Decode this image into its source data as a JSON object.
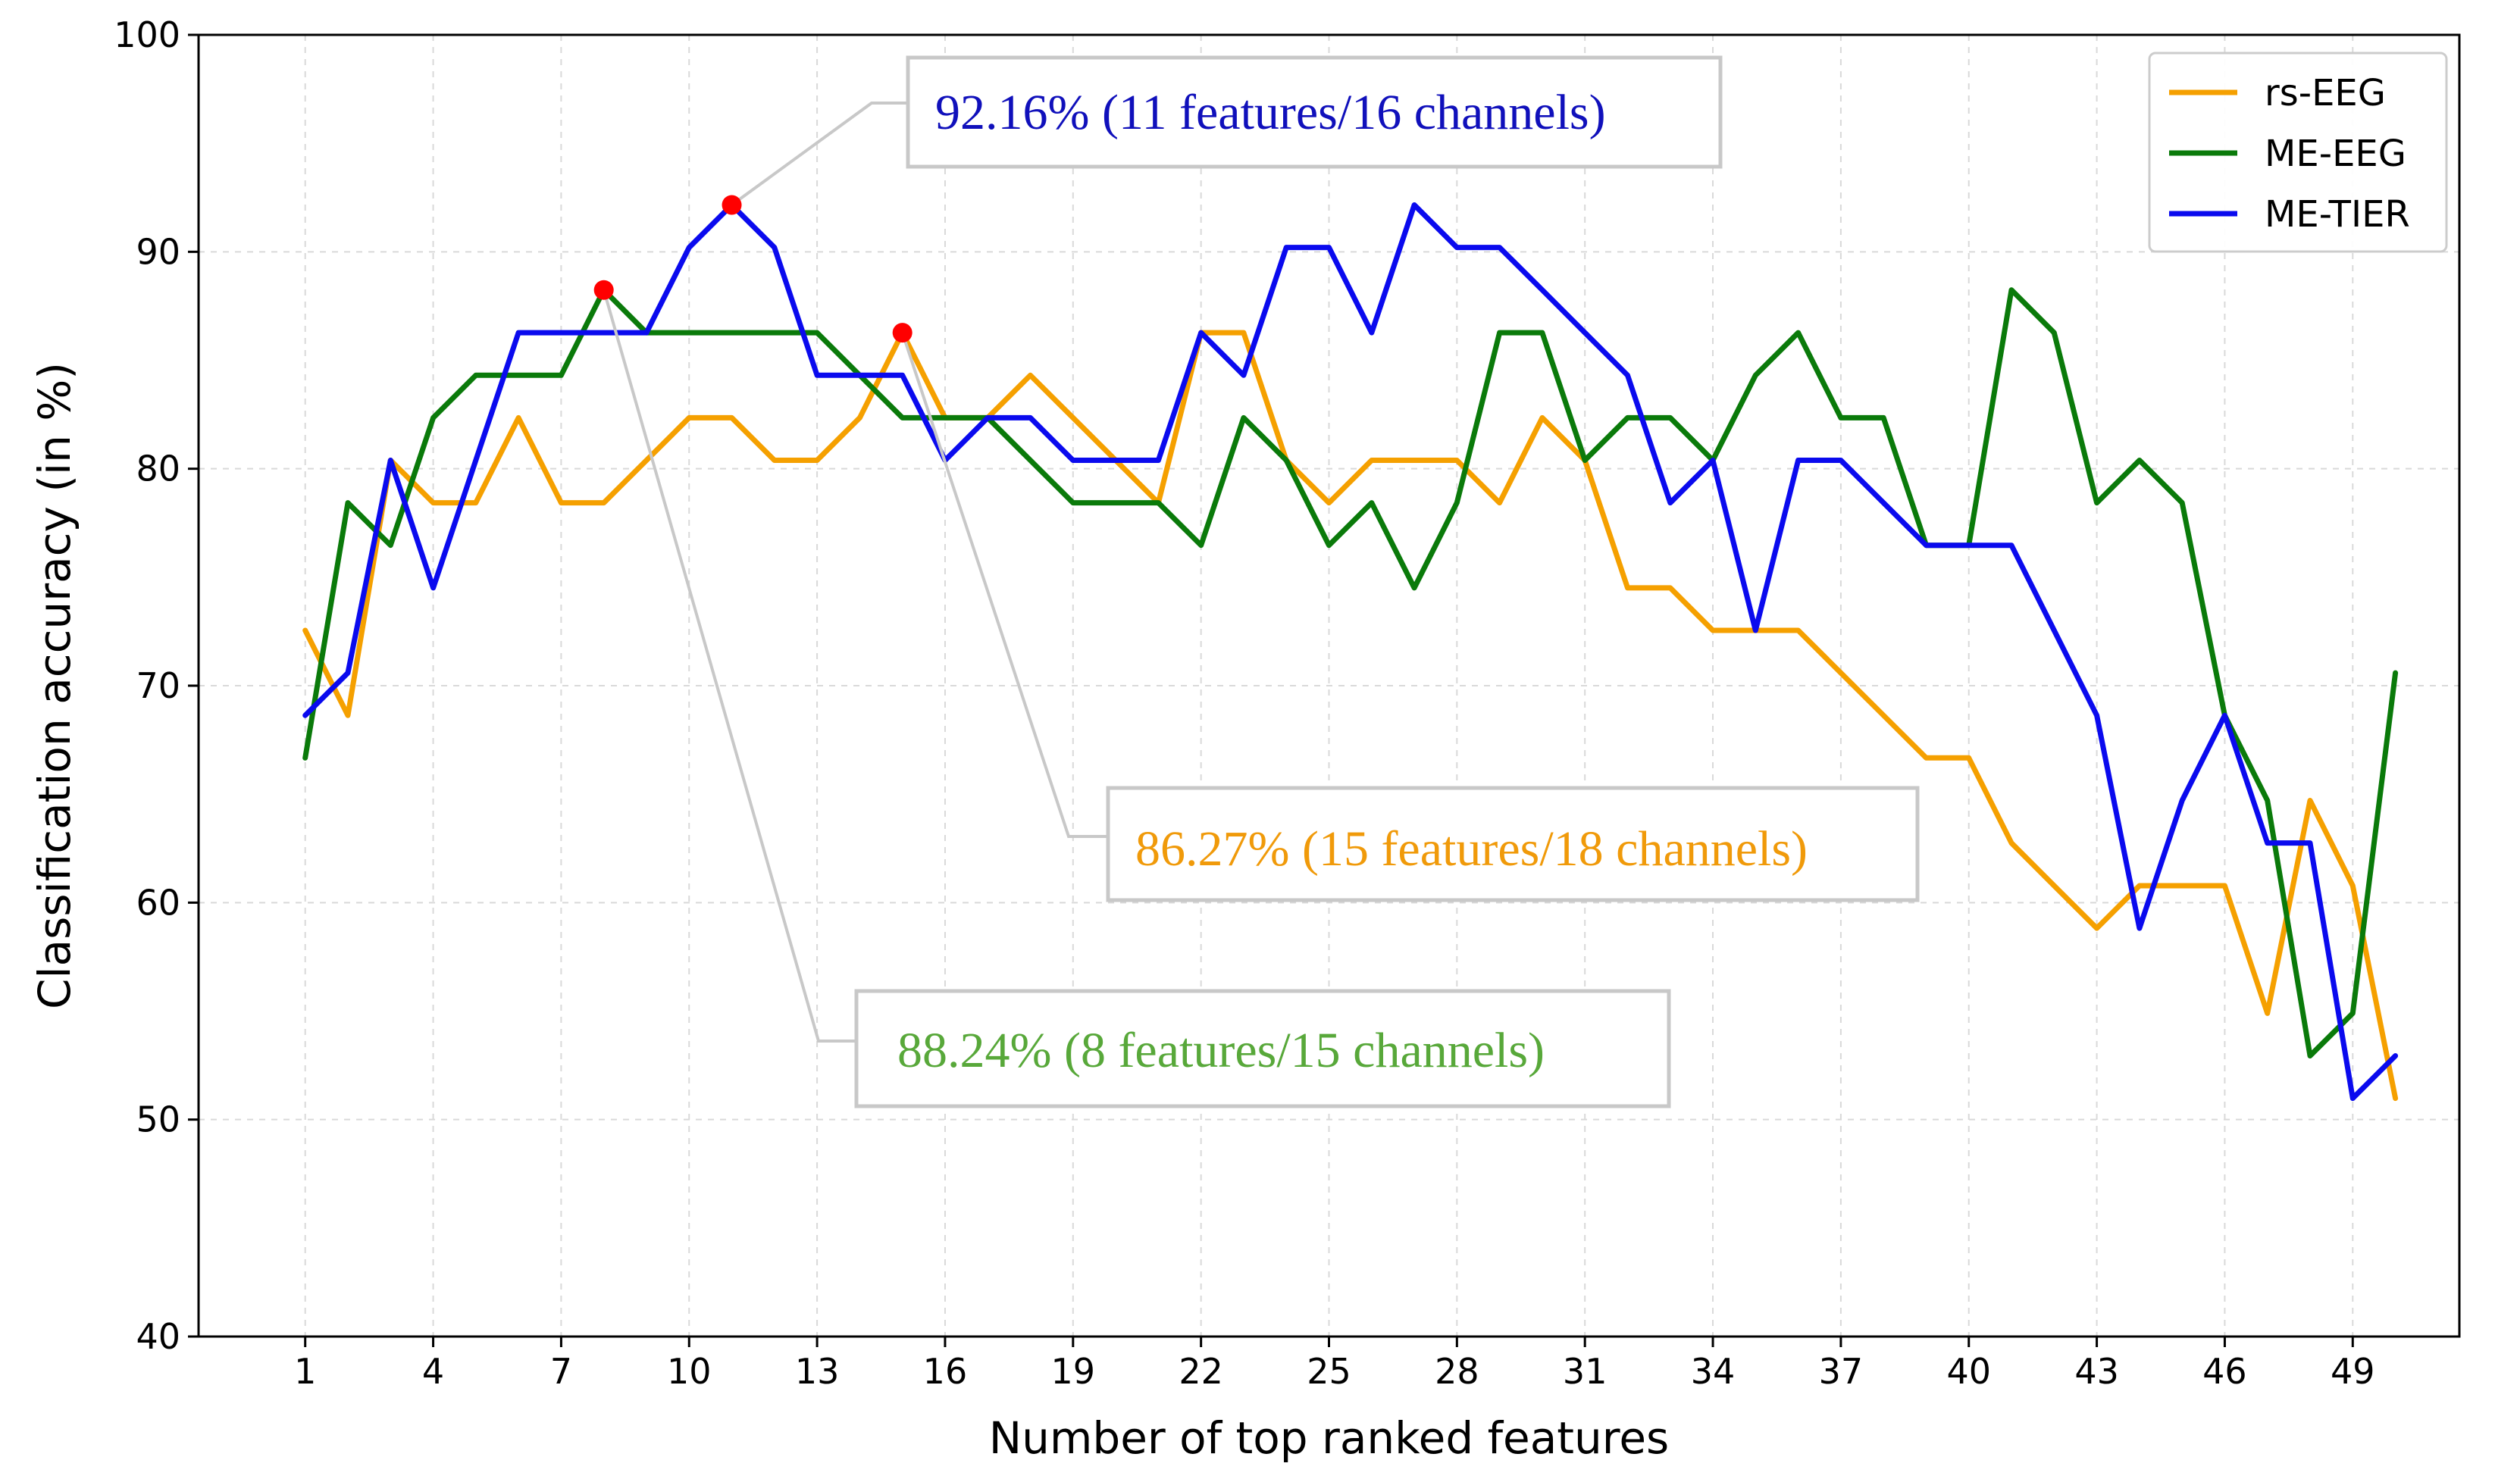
{
  "chart_data": {
    "type": "line",
    "title": "",
    "xlabel": "Number of top ranked features",
    "ylabel": "Classification accuracy (in %)",
    "xlim": [
      -1.5,
      51.5
    ],
    "ylim": [
      40,
      100
    ],
    "xticks": [
      1,
      4,
      7,
      10,
      13,
      16,
      19,
      22,
      25,
      28,
      31,
      34,
      37,
      40,
      43,
      46,
      49
    ],
    "yticks": [
      40,
      50,
      60,
      70,
      80,
      90,
      100
    ],
    "grid": true,
    "legend_position": "top-right",
    "x": [
      1,
      2,
      3,
      4,
      5,
      6,
      7,
      8,
      9,
      10,
      11,
      12,
      13,
      14,
      15,
      16,
      17,
      18,
      19,
      20,
      21,
      22,
      23,
      24,
      25,
      26,
      27,
      28,
      29,
      30,
      31,
      32,
      33,
      34,
      35,
      36,
      37,
      38,
      39,
      40,
      41,
      42,
      43,
      44,
      45,
      46,
      47,
      48,
      49,
      50
    ],
    "series": [
      {
        "name": "rs-EEG",
        "color": "#f5a000",
        "values": [
          72.55,
          68.63,
          80.39,
          78.43,
          78.43,
          82.35,
          78.43,
          78.43,
          80.39,
          82.35,
          82.35,
          80.39,
          80.39,
          82.35,
          86.27,
          82.35,
          82.35,
          84.31,
          82.35,
          80.39,
          78.43,
          86.27,
          86.27,
          80.39,
          78.43,
          80.39,
          80.39,
          80.39,
          78.43,
          82.35,
          80.39,
          74.51,
          74.51,
          72.55,
          72.55,
          72.55,
          70.59,
          68.63,
          66.67,
          66.67,
          62.75,
          60.78,
          58.82,
          60.78,
          60.78,
          60.78,
          54.9,
          64.71,
          60.78,
          50.98
        ]
      },
      {
        "name": "ME-EEG",
        "color": "#0a7a0a",
        "values": [
          66.67,
          78.43,
          76.47,
          82.35,
          84.31,
          84.31,
          84.31,
          88.24,
          86.27,
          86.27,
          86.27,
          86.27,
          86.27,
          84.31,
          82.35,
          82.35,
          82.35,
          80.39,
          78.43,
          78.43,
          78.43,
          76.47,
          82.35,
          80.39,
          76.47,
          78.43,
          74.51,
          78.43,
          86.27,
          86.27,
          80.39,
          82.35,
          82.35,
          80.39,
          84.31,
          86.27,
          82.35,
          82.35,
          76.47,
          76.47,
          88.24,
          86.27,
          78.43,
          80.39,
          78.43,
          68.63,
          64.71,
          52.94,
          54.9,
          70.59
        ]
      },
      {
        "name": "ME-TIER",
        "color": "#0a0aee",
        "values": [
          68.63,
          70.59,
          80.39,
          74.51,
          80.39,
          86.27,
          86.27,
          86.27,
          86.27,
          90.2,
          92.16,
          90.2,
          84.31,
          84.31,
          84.31,
          80.39,
          82.35,
          82.35,
          80.39,
          80.39,
          80.39,
          86.27,
          84.31,
          90.2,
          90.2,
          86.27,
          92.16,
          90.2,
          90.2,
          88.24,
          86.27,
          84.31,
          78.43,
          80.39,
          72.55,
          80.39,
          80.39,
          78.43,
          76.47,
          76.47,
          76.47,
          72.55,
          68.63,
          58.82,
          64.71,
          68.63,
          62.75,
          62.75,
          50.98,
          52.94
        ]
      }
    ],
    "highlight_points": [
      {
        "x": 8,
        "y": 88.24
      },
      {
        "x": 11,
        "y": 92.16
      },
      {
        "x": 15,
        "y": 86.27
      }
    ],
    "annotations": [
      {
        "text": "92.16% (11 features/16 channels)",
        "color": "#1010bb",
        "x": 11,
        "y": 92.16
      },
      {
        "text": "86.27% (15 features/18 channels)",
        "color": "#f09a0a",
        "x": 15,
        "y": 86.27
      },
      {
        "text": "88.24% (8 features/15 channels)",
        "color": "#58a83a",
        "x": 8,
        "y": 88.24
      }
    ]
  }
}
